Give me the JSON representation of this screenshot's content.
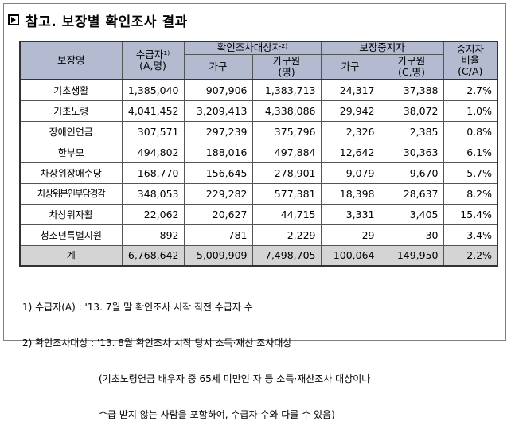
{
  "title": "참고. 보장별 확인조사 결과",
  "headers": {
    "program": "보장명",
    "recipients": "수급자¹⁾",
    "recipients_sub": "(A,명)",
    "target_group": "확인조사대상자²⁾",
    "target_households": "가구",
    "target_members": "가구원",
    "target_members_sub": "(명)",
    "stopped_group": "보장중지자",
    "stopped_households": "가구",
    "stopped_members": "가구원",
    "stopped_members_sub": "(C,명)",
    "ratio": "중지자",
    "ratio_l2": "비율",
    "ratio_sub": "(C/A)"
  },
  "rows": [
    {
      "name": "기초생활",
      "recipients": "1,385,040",
      "t_households": "907,906",
      "t_members": "1,383,713",
      "s_households": "24,317",
      "s_members": "37,388",
      "ratio": "2.7%"
    },
    {
      "name": "기초노령",
      "recipients": "4,041,452",
      "t_households": "3,209,413",
      "t_members": "4,338,086",
      "s_households": "29,942",
      "s_members": "38,072",
      "ratio": "1.0%"
    },
    {
      "name": "장애인연금",
      "recipients": "307,571",
      "t_households": "297,239",
      "t_members": "375,796",
      "s_households": "2,326",
      "s_members": "2,385",
      "ratio": "0.8%"
    },
    {
      "name": "한부모",
      "recipients": "494,802",
      "t_households": "188,016",
      "t_members": "497,884",
      "s_households": "12,642",
      "s_members": "30,363",
      "ratio": "6.1%"
    },
    {
      "name": "차상위장애수당",
      "recipients": "168,770",
      "t_households": "156,645",
      "t_members": "278,901",
      "s_households": "9,079",
      "s_members": "9,670",
      "ratio": "5.7%"
    },
    {
      "name": "차상위본인부담경감",
      "recipients": "348,053",
      "t_households": "229,282",
      "t_members": "577,381",
      "s_households": "18,398",
      "s_members": "28,637",
      "ratio": "8.2%"
    },
    {
      "name": "차상위자활",
      "recipients": "22,062",
      "t_households": "20,627",
      "t_members": "44,715",
      "s_households": "3,331",
      "s_members": "3,405",
      "ratio": "15.4%"
    },
    {
      "name": "청소년특별지원",
      "recipients": "892",
      "t_households": "781",
      "t_members": "2,229",
      "s_households": "29",
      "s_members": "30",
      "ratio": "3.4%"
    }
  ],
  "total": {
    "name": "계",
    "recipients": "6,768,642",
    "t_households": "5,009,909",
    "t_members": "7,498,705",
    "s_households": "100,064",
    "s_members": "149,950",
    "ratio": "2.2%"
  },
  "notes": {
    "n1": "1) 수급자(A) : '13. 7월 말 확인조사 시작 직전 수급자 수",
    "n2": "2) 확인조사대상 : '13. 8월 확인조사 시작 당시 소득·재산 조사대상",
    "n2_l2": "(기초노령연금 배우자 중 65세 미만인 자 등 소득·재산조사 대상이나",
    "n2_l3": "수급 받지 않는 사람을 포함하여, 수급자 수와 다를 수 있음)"
  }
}
